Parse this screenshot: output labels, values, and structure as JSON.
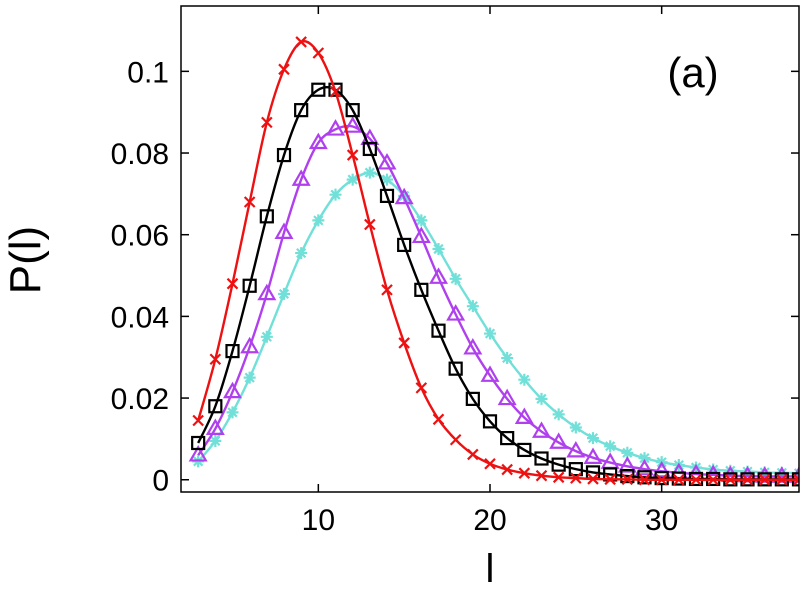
{
  "chart_data": {
    "type": "line",
    "panel_label": "(a)",
    "xlabel": "l",
    "ylabel": "P(l)",
    "xlim": [
      2,
      38
    ],
    "ylim": [
      -0.003,
      0.116
    ],
    "x_ticks": [
      10,
      20,
      30
    ],
    "x_tick_labels": [
      "10",
      "20",
      "30"
    ],
    "y_ticks": [
      0,
      0.02,
      0.04,
      0.06,
      0.08,
      0.1
    ],
    "y_tick_labels": [
      "0",
      "0.02",
      "0.04",
      "0.06",
      "0.08",
      "0.1"
    ],
    "grid": false,
    "x": [
      3,
      4,
      5,
      6,
      7,
      8,
      9,
      10,
      11,
      12,
      13,
      14,
      15,
      16,
      17,
      18,
      19,
      20,
      21,
      22,
      23,
      24,
      25,
      26,
      27,
      28,
      29,
      30,
      31,
      32,
      33,
      34,
      35,
      36,
      37,
      38
    ],
    "series": [
      {
        "name": "red-x",
        "color": "#ee1111",
        "marker": "x",
        "values": [
          0.0145,
          0.0295,
          0.048,
          0.068,
          0.0875,
          0.1005,
          0.1072,
          0.1045,
          0.095,
          0.0795,
          0.0625,
          0.0465,
          0.0335,
          0.0225,
          0.0148,
          0.0098,
          0.0062,
          0.0039,
          0.0025,
          0.0016,
          0.001,
          0.0006,
          0.0004,
          0.0002,
          0.0001,
          0.0001,
          0,
          0,
          0,
          0,
          0,
          0,
          0,
          0,
          0,
          0
        ]
      },
      {
        "name": "black-square",
        "color": "#000000",
        "marker": "square",
        "values": [
          0.009,
          0.018,
          0.0315,
          0.0475,
          0.0645,
          0.0795,
          0.0905,
          0.0955,
          0.0955,
          0.0905,
          0.081,
          0.0695,
          0.0575,
          0.0465,
          0.0365,
          0.0272,
          0.0198,
          0.0143,
          0.0102,
          0.0073,
          0.0052,
          0.0037,
          0.0026,
          0.0018,
          0.0013,
          0.0009,
          0.0006,
          0.0004,
          0.0003,
          0.0002,
          0.0002,
          0.0001,
          0.0001,
          0.0001,
          0.0001,
          0.0001
        ]
      },
      {
        "name": "purple-triangle",
        "color": "#b040ee",
        "marker": "triangle",
        "values": [
          0.006,
          0.0125,
          0.0215,
          0.0325,
          0.0455,
          0.0605,
          0.0735,
          0.0825,
          0.0858,
          0.0865,
          0.0835,
          0.0775,
          0.069,
          0.0595,
          0.0495,
          0.0405,
          0.0322,
          0.0255,
          0.0198,
          0.0152,
          0.0118,
          0.0091,
          0.007,
          0.0054,
          0.0042,
          0.0033,
          0.0026,
          0.0021,
          0.0017,
          0.0014,
          0.0012,
          0.001,
          0.0009,
          0.0008,
          0.0008,
          0.0008
        ]
      },
      {
        "name": "cyan-asterisk",
        "color": "#70e0d8",
        "marker": "asterisk",
        "values": [
          0.0045,
          0.0095,
          0.0165,
          0.025,
          0.035,
          0.0455,
          0.0555,
          0.0635,
          0.0698,
          0.0735,
          0.0752,
          0.0735,
          0.0695,
          0.0635,
          0.0565,
          0.0492,
          0.0425,
          0.0358,
          0.0298,
          0.0245,
          0.0198,
          0.016,
          0.0128,
          0.0102,
          0.0082,
          0.0066,
          0.0053,
          0.0043,
          0.0036,
          0.003,
          0.0025,
          0.0022,
          0.002,
          0.0018,
          0.0017,
          0.0016
        ]
      }
    ]
  }
}
